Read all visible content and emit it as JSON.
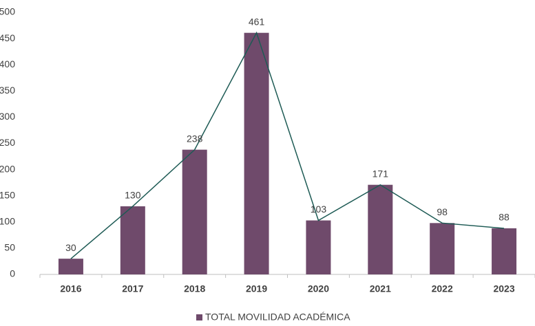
{
  "chart_data": {
    "type": "bar",
    "categories": [
      "2016",
      "2017",
      "2018",
      "2019",
      "2020",
      "2021",
      "2022",
      "2023"
    ],
    "series": [
      {
        "name": "TOTAL MOVILIDAD ACADÉMICA",
        "color": "#6f4a6b",
        "values": [
          30,
          130,
          238,
          461,
          103,
          171,
          98,
          88
        ]
      }
    ],
    "line_color": "#1e5b55",
    "ylim": [
      0,
      500
    ],
    "yticks": [
      0,
      50,
      100,
      150,
      200,
      250,
      300,
      350,
      400,
      450,
      500
    ],
    "grid": false,
    "legend": "bottom"
  }
}
